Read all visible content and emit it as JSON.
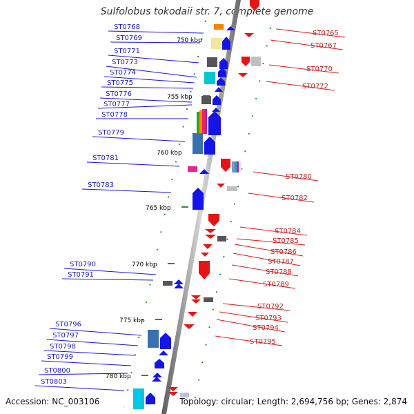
{
  "title": "Sulfolobus tokodaii str. 7, complete genome",
  "footer": {
    "accession": "Accession: NC_003106",
    "summary": "Topology: circular; Length: 2,694,756 bp; Genes: 2,874"
  },
  "ticks": [
    "750 kbp",
    "755 kbp",
    "760 kbp",
    "765 kbp",
    "770 kbp",
    "775 kbp",
    "780 kbp"
  ],
  "left_genes": [
    "ST0768",
    "ST0769",
    "ST0771",
    "ST0773",
    "ST0774",
    "ST0775",
    "ST0776",
    "ST0777",
    "ST0778",
    "ST0779",
    "ST0781",
    "ST0783",
    "ST0790",
    "ST0791",
    "ST0796",
    "ST0797",
    "ST0798",
    "ST0799",
    "ST0800",
    "ST0803"
  ],
  "right_genes": [
    "ST0765",
    "ST0767",
    "ST0770",
    "ST0772",
    "ST0780",
    "ST0782",
    "ST0784",
    "ST0785",
    "ST0786",
    "ST0787",
    "ST0788",
    "ST0789",
    "ST0792",
    "ST0793",
    "ST0794",
    "ST0795"
  ],
  "colors": {
    "forward": "#1414e6",
    "reverse": "#e61414",
    "axis": "#888888",
    "tick": "#2e8b2e",
    "forward_label": "#1a1acc",
    "reverse_label": "#cc1a1a"
  }
}
